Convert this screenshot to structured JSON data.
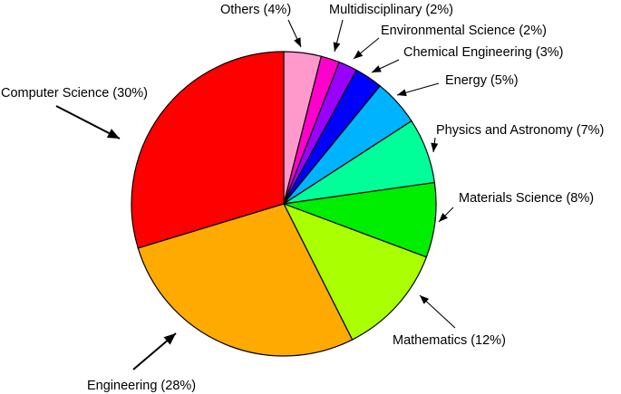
{
  "chart_data": {
    "type": "pie",
    "slices": [
      {
        "label": "Others (4%)",
        "category": "Others",
        "value": 4,
        "color": "#ff99cc"
      },
      {
        "label": "Multidisciplinary (2%)",
        "category": "Multidisciplinary",
        "value": 2,
        "color": "#ff00cc"
      },
      {
        "label": "Environmental Science (2%)",
        "category": "Environmental Science",
        "value": 2,
        "color": "#9900ff"
      },
      {
        "label": "Chemical Engineering (3%)",
        "category": "Chemical Engineering",
        "value": 3,
        "color": "#0000ff"
      },
      {
        "label": "Energy (5%)",
        "category": "Energy",
        "value": 5,
        "color": "#00b3ff"
      },
      {
        "label": "Physics and Astronomy (7%)",
        "category": "Physics and Astronomy",
        "value": 7,
        "color": "#00ff99"
      },
      {
        "label": "Materials Science (8%)",
        "category": "Materials Science",
        "value": 8,
        "color": "#00ee00"
      },
      {
        "label": "Mathematics (12%)",
        "category": "Mathematics",
        "value": 12,
        "color": "#aaff00"
      },
      {
        "label": "Engineering (28%)",
        "category": "Engineering",
        "value": 28,
        "color": "#ffaa00"
      },
      {
        "label": "Computer Science (30%)",
        "category": "Computer Science",
        "value": 30,
        "color": "#ff0000"
      }
    ],
    "start": "12 o'clock",
    "direction": "clockwise",
    "legend": "none (callout labels with arrows)"
  }
}
